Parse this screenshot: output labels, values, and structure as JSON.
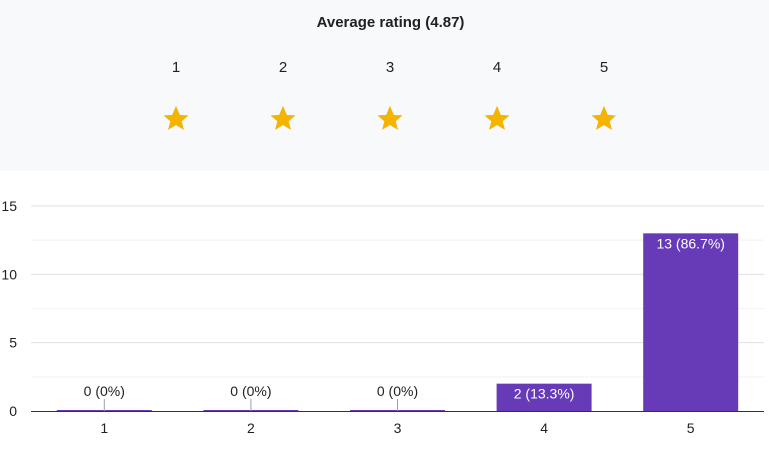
{
  "rating": {
    "title": "Average rating (4.87)",
    "average": 4.87,
    "scale": [
      "1",
      "2",
      "3",
      "4",
      "5"
    ],
    "star_color": "#f4b400",
    "star_empty_color": "#bdc1c6"
  },
  "chart_data": {
    "type": "bar",
    "categories": [
      "1",
      "2",
      "3",
      "4",
      "5"
    ],
    "values": [
      0,
      0,
      0,
      2,
      13
    ],
    "labels": [
      "0 (0%)",
      "0 (0%)",
      "0 (0%)",
      "2 (13.3%)",
      "13 (86.7%)"
    ],
    "ylim": [
      0,
      15
    ],
    "yticks": [
      "0",
      "5",
      "10",
      "15"
    ],
    "grid": true,
    "bar_color": "#673ab7",
    "title": "",
    "xlabel": "",
    "ylabel": ""
  }
}
